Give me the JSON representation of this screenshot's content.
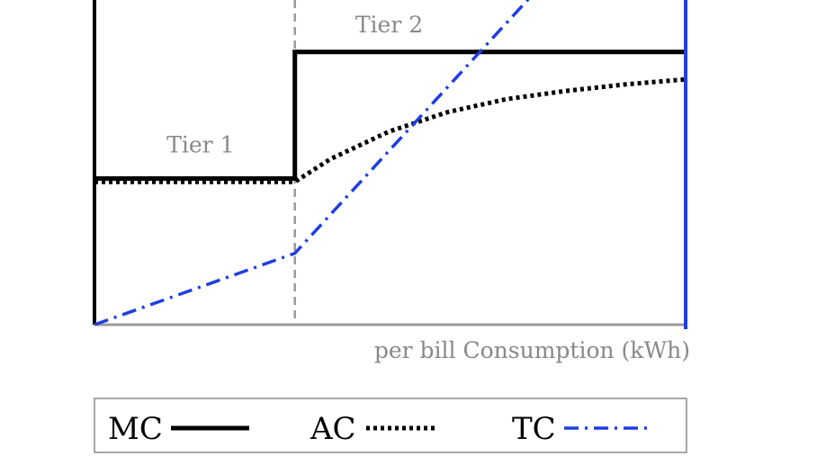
{
  "chart_data": {
    "type": "line",
    "title": "",
    "xlabel": "per bill Consumption (kWh)",
    "ylabel": "",
    "xlim": [
      0,
      100
    ],
    "ylim": [
      0,
      100
    ],
    "tier_boundary_x": 34,
    "tier_labels": [
      {
        "text": "Tier 1",
        "x": 18,
        "y": 53
      },
      {
        "text": "Tier 2",
        "x": 50,
        "y": 90
      }
    ],
    "series": [
      {
        "name": "MC",
        "style": "solid",
        "color": "#000000",
        "x": [
          0,
          34,
          34,
          100
        ],
        "y": [
          45,
          45,
          84,
          84
        ]
      },
      {
        "name": "AC",
        "style": "dotted",
        "color": "#000000",
        "x": [
          0,
          34,
          40,
          50,
          60,
          70,
          80,
          90,
          100
        ],
        "y": [
          44,
          44,
          51,
          59.5,
          65.5,
          69.5,
          72,
          74,
          75.5
        ]
      },
      {
        "name": "TC",
        "style": "dashdot",
        "color": "#1f3fe0",
        "x": [
          0,
          34,
          75
        ],
        "y": [
          0,
          22,
          103
        ]
      }
    ],
    "legend": {
      "placement": "bottom",
      "entries": [
        {
          "label": "MC",
          "style": "solid"
        },
        {
          "label": "AC",
          "style": "dotted"
        },
        {
          "label": "TC",
          "style": "dashdot"
        }
      ]
    },
    "right_edge_line_color": "#1f3fe0",
    "axis_color": "#999999",
    "grid": false
  }
}
